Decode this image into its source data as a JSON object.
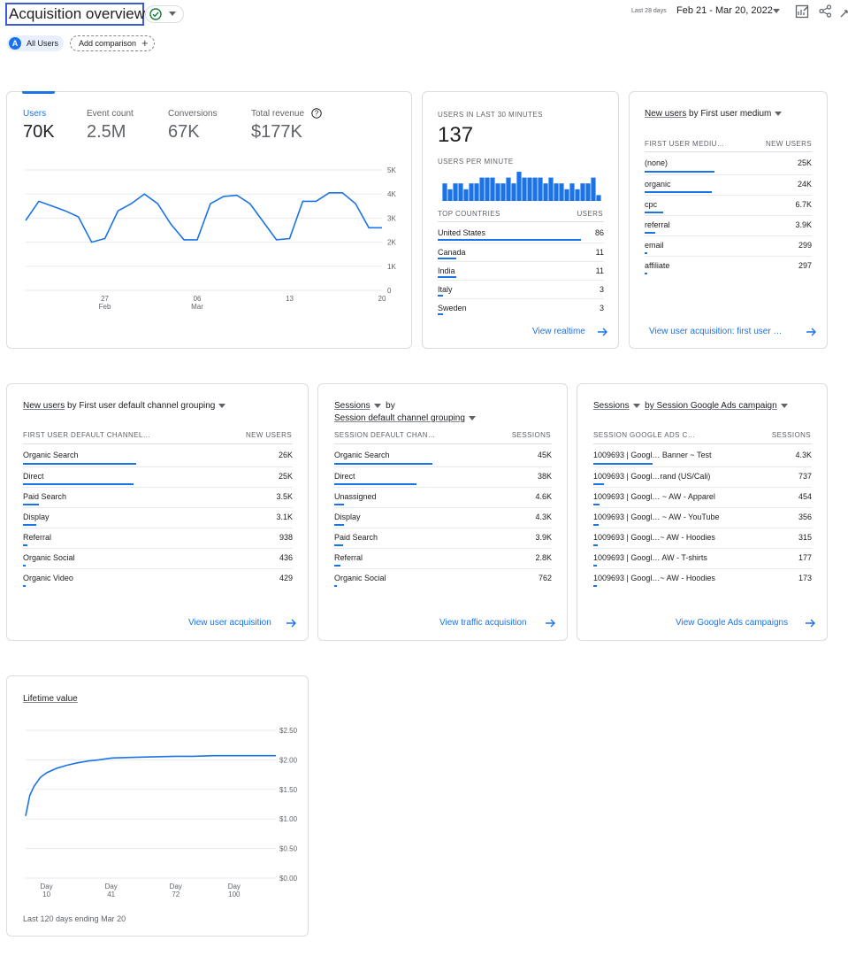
{
  "header": {
    "title": "Acquisition overview",
    "date_label_small": "Last 28 days",
    "date_range": "Feb 21 - Mar 20, 2022",
    "all_users_avatar": "A",
    "all_users": "All Users",
    "add_comparison": "Add comparison",
    "icons": [
      "check-circle-icon",
      "chevron-down-icon",
      "edit-chart-icon",
      "share-icon",
      "expand-icon",
      "plus-icon"
    ]
  },
  "overview_card": {
    "metrics": [
      {
        "label": "Users",
        "value": "70K"
      },
      {
        "label": "Event count",
        "value": "2.5M"
      },
      {
        "label": "Conversions",
        "value": "67K"
      },
      {
        "label": "Total revenue",
        "value": "$177K"
      }
    ],
    "chart_data": {
      "type": "line",
      "series": [
        {
          "values": [
            2900,
            3700,
            3500,
            3300,
            3050,
            2000,
            2150,
            3300,
            3600,
            4000,
            3600,
            2750,
            2100,
            2100,
            3600,
            3900,
            3950,
            3600,
            2850,
            2100,
            2150,
            3700,
            3700,
            4050,
            4050,
            3600,
            2600,
            2600
          ]
        }
      ],
      "x_ticks": [
        {
          "day": "27",
          "month": "Feb"
        },
        {
          "day": "06",
          "month": "Mar"
        },
        {
          "day": "13",
          "month": ""
        },
        {
          "day": "20",
          "month": ""
        }
      ],
      "y_ticks": [
        "5K",
        "4K",
        "3K",
        "2K",
        "1K",
        "0"
      ],
      "ylim": [
        0,
        5000
      ],
      "color": "#1a73e8",
      "grid": true
    }
  },
  "realtime_card": {
    "users_label": "USERS IN LAST 30 MINUTES",
    "users_value": "137",
    "per_minute_label": "USERS PER MINUTE",
    "chart_data": {
      "type": "bar",
      "values": [
        3,
        2,
        3,
        3,
        2,
        3,
        3,
        4,
        4,
        4,
        3,
        3,
        4,
        3,
        5,
        4,
        4,
        4,
        4,
        3,
        4,
        3,
        3,
        2,
        3,
        2,
        3,
        3,
        4,
        1
      ],
      "ylim": [
        0,
        5
      ],
      "color": "#1a73e8"
    },
    "table_header": [
      "TOP COUNTRIES",
      "USERS"
    ],
    "rows": [
      {
        "label": "United States",
        "value": "86",
        "share": 0.86
      },
      {
        "label": "Canada",
        "value": "11",
        "share": 0.11
      },
      {
        "label": "India",
        "value": "11",
        "share": 0.11
      },
      {
        "label": "Italy",
        "value": "3",
        "share": 0.03
      },
      {
        "label": "Sweden",
        "value": "3",
        "share": 0.03
      }
    ],
    "link": "View realtime"
  },
  "medium_card": {
    "title_metric": "New users",
    "title_rest": "by First user medium",
    "table_header": [
      "FIRST USER MEDIU…",
      "NEW USERS"
    ],
    "rows": [
      {
        "label": "(none)",
        "value": "25K",
        "share": 0.42
      },
      {
        "label": "organic",
        "value": "24K",
        "share": 0.4
      },
      {
        "label": "cpc",
        "value": "6.7K",
        "share": 0.11
      },
      {
        "label": "referral",
        "value": "3.9K",
        "share": 0.065
      },
      {
        "label": "email",
        "value": "299",
        "share": 0.01
      },
      {
        "label": "affiliate",
        "value": "297",
        "share": 0.01
      }
    ],
    "link": "View user acquisition: first user …"
  },
  "channel_card": {
    "title_metric": "New users",
    "title_rest": "by First user default channel grouping",
    "table_header": [
      "FIRST USER DEFAULT CHANNEL…",
      "NEW USERS"
    ],
    "rows": [
      {
        "label": "Organic Search",
        "value": "26K",
        "share": 0.42
      },
      {
        "label": "Direct",
        "value": "25K",
        "share": 0.41
      },
      {
        "label": "Paid Search",
        "value": "3.5K",
        "share": 0.06
      },
      {
        "label": "Display",
        "value": "3.1K",
        "share": 0.05
      },
      {
        "label": "Referral",
        "value": "938",
        "share": 0.015
      },
      {
        "label": "Organic Social",
        "value": "436",
        "share": 0.008
      },
      {
        "label": "Organic Video",
        "value": "429",
        "share": 0.008
      }
    ],
    "link": "View user acquisition"
  },
  "sessions_card": {
    "title_metric": "Sessions",
    "title_by": "by",
    "title_dimension": "Session default channel grouping",
    "table_header": [
      "SESSION DEFAULT CHAN…",
      "SESSIONS"
    ],
    "rows": [
      {
        "label": "Organic Search",
        "value": "45K",
        "share": 0.45
      },
      {
        "label": "Direct",
        "value": "38K",
        "share": 0.38
      },
      {
        "label": "Unassigned",
        "value": "4.6K",
        "share": 0.046
      },
      {
        "label": "Display",
        "value": "4.3K",
        "share": 0.043
      },
      {
        "label": "Paid Search",
        "value": "3.9K",
        "share": 0.039
      },
      {
        "label": "Referral",
        "value": "2.8K",
        "share": 0.028
      },
      {
        "label": "Organic Social",
        "value": "762",
        "share": 0.008
      }
    ],
    "link": "View traffic acquisition"
  },
  "ads_card": {
    "title_metric": "Sessions",
    "title_rest": "by Session Google Ads campaign",
    "table_header": [
      "SESSION GOOGLE ADS C…",
      "SESSIONS"
    ],
    "rows": [
      {
        "label": "1009693 | Googl… Banner ~ Test",
        "value": "4.3K",
        "share": 0.27
      },
      {
        "label": "1009693 | Googl…rand (US/Cali)",
        "value": "737",
        "share": 0.05
      },
      {
        "label": "1009693 | Googl… ~ AW - Apparel",
        "value": "454",
        "share": 0.03
      },
      {
        "label": "1009693 | Googl… ~ AW - YouTube",
        "value": "356",
        "share": 0.025
      },
      {
        "label": "1009693 | Googl…~ AW - Hoodies",
        "value": "315",
        "share": 0.022
      },
      {
        "label": "1009693 | Googl… AW - T-shirts",
        "value": "177",
        "share": 0.015
      },
      {
        "label": "1009693 | Googl…~ AW - Hoodies",
        "value": "173",
        "share": 0.015
      }
    ],
    "link": "View Google Ads campaigns"
  },
  "ltv_card": {
    "title": "Lifetime value",
    "footer": "Last 120 days ending Mar 20",
    "chart_data": {
      "type": "line",
      "x": [
        0,
        2,
        4,
        7,
        10,
        15,
        20,
        25,
        30,
        35,
        41,
        50,
        60,
        72,
        80,
        90,
        100,
        110,
        120
      ],
      "values": [
        1.05,
        1.4,
        1.55,
        1.7,
        1.78,
        1.86,
        1.91,
        1.95,
        1.98,
        2.0,
        2.03,
        2.04,
        2.05,
        2.06,
        2.06,
        2.07,
        2.07,
        2.07,
        2.07
      ],
      "x_ticks": [
        {
          "line1": "Day",
          "line2": "10"
        },
        {
          "line1": "Day",
          "line2": "41"
        },
        {
          "line1": "Day",
          "line2": "72"
        },
        {
          "line1": "Day",
          "line2": "100"
        }
      ],
      "x_tick_values": [
        10,
        41,
        72,
        100
      ],
      "y_ticks": [
        "$2.50",
        "$2.00",
        "$1.50",
        "$1.00",
        "$0.50",
        "$0.00"
      ],
      "ylim": [
        0,
        2.5
      ],
      "xlim": [
        0,
        120
      ],
      "color": "#1a73e8",
      "grid": true
    }
  }
}
